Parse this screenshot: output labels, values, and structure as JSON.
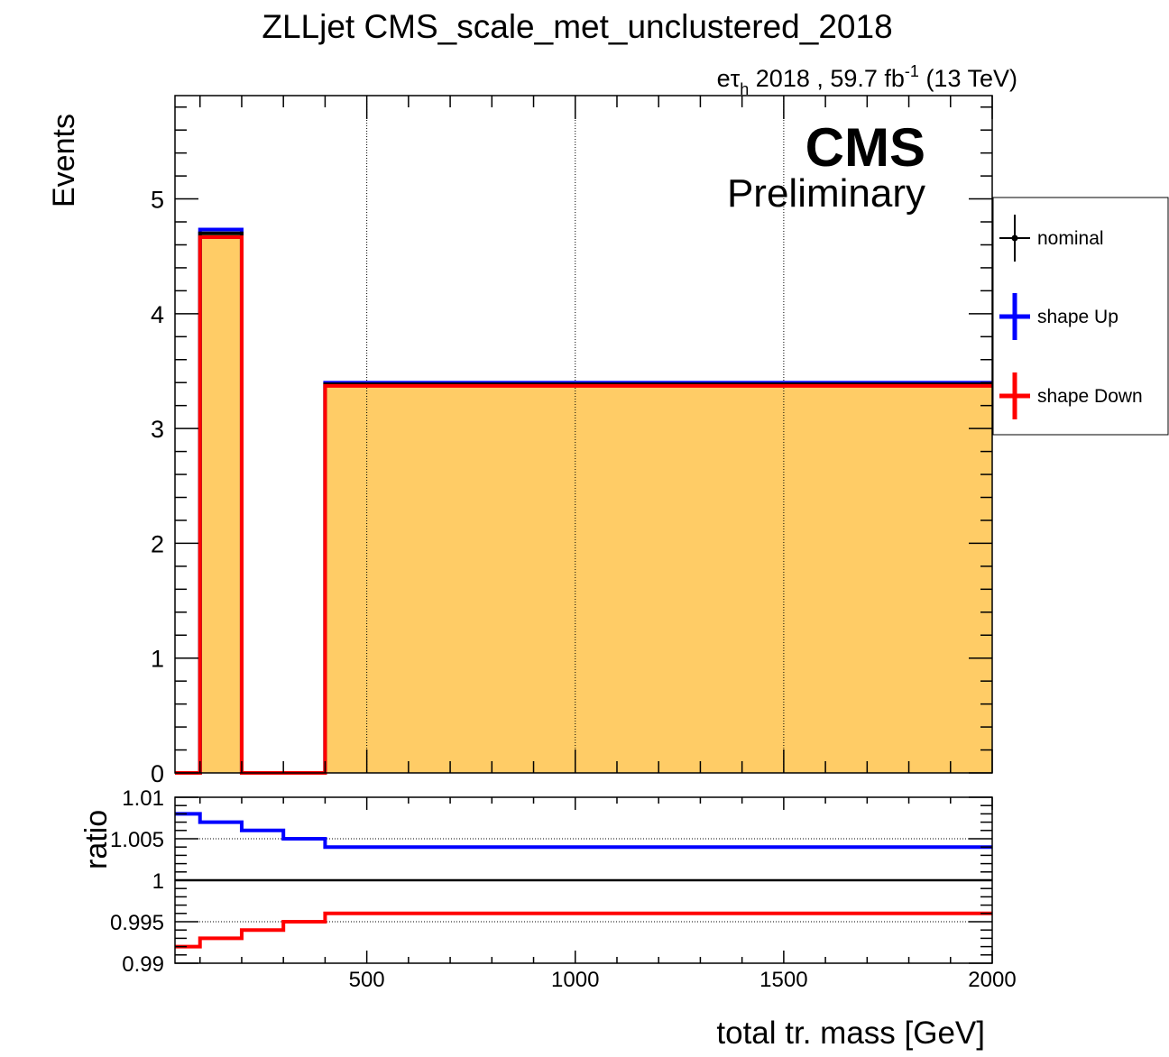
{
  "title": "ZLLjet CMS_scale_met_unclustered_2018",
  "lumi": {
    "channel_e": "e",
    "channel_tau": "τ",
    "channel_sub": "h",
    "text": " 2018 , 59.7 fb",
    "sup": "-1",
    "energy": " (13 TeV)"
  },
  "cms_label": "CMS",
  "prelim_label": "Preliminary",
  "colors": {
    "nominal": "#000000",
    "up": "#0000ff",
    "down": "#ff0000",
    "fill": "#ffcc66"
  },
  "legend": {
    "nominal": "nominal",
    "up": "shape Up",
    "down": "shape Down"
  },
  "chart_data": [
    {
      "type": "histogram",
      "ylabel": "Events",
      "xlim": [
        40,
        2000
      ],
      "ylim": [
        0,
        5.9
      ],
      "yticks": [
        0,
        1,
        2,
        3,
        4,
        5
      ],
      "ytick_labels": [
        "0",
        "1",
        "2",
        "3",
        "4",
        "5"
      ],
      "xgrid": [
        500,
        1000,
        1500
      ],
      "bin_edges": [
        40,
        100,
        200,
        300,
        400,
        2000
      ],
      "series": [
        {
          "name": "nominal",
          "values": [
            0,
            4.7,
            0,
            0,
            3.385
          ]
        },
        {
          "name": "shape Up",
          "values": [
            0,
            4.733,
            0,
            0,
            3.399
          ]
        },
        {
          "name": "shape Down",
          "values": [
            0,
            4.667,
            0,
            0,
            3.371
          ]
        }
      ]
    },
    {
      "type": "line",
      "ylabel": "ratio",
      "xlabel": "total tr. mass [GeV]",
      "xlim": [
        40,
        2000
      ],
      "ylim": [
        0.99,
        1.01
      ],
      "yticks": [
        0.99,
        0.995,
        1,
        1.005,
        1.01
      ],
      "ytick_labels": [
        "0.99",
        "0.995",
        "1",
        "1.005",
        "1.01"
      ],
      "xticks": [
        500,
        1000,
        1500,
        2000
      ],
      "xtick_labels": [
        "500",
        "1000",
        "1500",
        "2000"
      ],
      "bin_edges": [
        40,
        100,
        200,
        300,
        400,
        2000
      ],
      "series": [
        {
          "name": "shape Up",
          "values": [
            1.008,
            1.007,
            1.006,
            1.005,
            1.004
          ]
        },
        {
          "name": "shape Down",
          "values": [
            0.992,
            0.993,
            0.994,
            0.995,
            0.996
          ]
        }
      ]
    }
  ]
}
